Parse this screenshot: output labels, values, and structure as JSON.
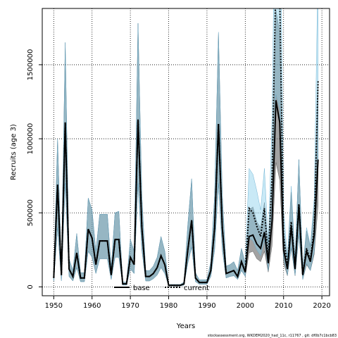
{
  "chart_data": {
    "type": "line",
    "xlabel": "Years",
    "ylabel": "Recruits (age 3)",
    "xlim": [
      1947,
      2022
    ],
    "ylim": [
      -60000,
      1880000
    ],
    "xticks": [
      1950,
      1960,
      1970,
      1980,
      1990,
      2000,
      2010,
      2020
    ],
    "yticks": [
      0,
      500000,
      1000000,
      1500000
    ],
    "ytick_labels": [
      "0",
      "500000",
      "1000000",
      "1500000"
    ],
    "grid": true,
    "legend_placement": "bottom-center",
    "footer": "stockassessment.org, WKDEM2020_had_11c, r11767 , git: df0b7c1bcb83",
    "x": [
      1950,
      1951,
      1952,
      1953,
      1954,
      1955,
      1956,
      1957,
      1958,
      1959,
      1960,
      1961,
      1962,
      1963,
      1964,
      1965,
      1966,
      1967,
      1968,
      1969,
      1970,
      1971,
      1972,
      1973,
      1974,
      1975,
      1976,
      1977,
      1978,
      1979,
      1980,
      1981,
      1982,
      1983,
      1984,
      1985,
      1986,
      1987,
      1988,
      1989,
      1990,
      1991,
      1992,
      1993,
      1994,
      1995,
      1996,
      1997,
      1998,
      1999,
      2000,
      2001,
      2002,
      2003,
      2004,
      2005,
      2006,
      2007,
      2008,
      2009,
      2010,
      2011,
      2012,
      2013,
      2014,
      2015,
      2016,
      2017,
      2018,
      2019
    ],
    "series": [
      {
        "name": "base",
        "color": "#000000",
        "band_color": "#555555",
        "line_style": "solid",
        "values": [
          60000,
          690000,
          80000,
          1110000,
          120000,
          70000,
          230000,
          60000,
          60000,
          390000,
          330000,
          150000,
          310000,
          310000,
          310000,
          80000,
          320000,
          320000,
          20000,
          20000,
          200000,
          150000,
          1130000,
          400000,
          70000,
          70000,
          90000,
          130000,
          210000,
          150000,
          10000,
          10000,
          10000,
          10000,
          20000,
          250000,
          450000,
          60000,
          30000,
          30000,
          30000,
          110000,
          400000,
          1100000,
          400000,
          90000,
          100000,
          110000,
          70000,
          170000,
          100000,
          340000,
          350000,
          290000,
          260000,
          370000,
          160000,
          450000,
          1260000,
          1110000,
          250000,
          120000,
          410000,
          120000,
          550000,
          80000,
          240000,
          170000,
          350000,
          860000
        ],
        "lower": [
          40000,
          400000,
          40000,
          700000,
          70000,
          40000,
          130000,
          35000,
          35000,
          240000,
          200000,
          90000,
          190000,
          190000,
          190000,
          50000,
          200000,
          200000,
          12000,
          12000,
          120000,
          90000,
          700000,
          250000,
          40000,
          40000,
          55000,
          80000,
          130000,
          90000,
          6000,
          6000,
          6000,
          6000,
          12000,
          160000,
          270000,
          35000,
          18000,
          18000,
          18000,
          70000,
          250000,
          700000,
          250000,
          60000,
          70000,
          75000,
          50000,
          110000,
          70000,
          230000,
          240000,
          190000,
          170000,
          240000,
          100000,
          280000,
          840000,
          720000,
          160000,
          75000,
          260000,
          75000,
          350000,
          50000,
          150000,
          110000,
          220000,
          550000
        ],
        "upper": [
          80000,
          1000000,
          120000,
          1650000,
          190000,
          110000,
          360000,
          95000,
          95000,
          600000,
          520000,
          240000,
          490000,
          490000,
          490000,
          130000,
          500000,
          510000,
          32000,
          32000,
          320000,
          240000,
          1780000,
          620000,
          110000,
          110000,
          140000,
          200000,
          340000,
          240000,
          16000,
          16000,
          16000,
          16000,
          32000,
          420000,
          730000,
          95000,
          48000,
          48000,
          48000,
          170000,
          620000,
          1720000,
          620000,
          140000,
          150000,
          170000,
          110000,
          260000,
          160000,
          520000,
          540000,
          440000,
          400000,
          570000,
          250000,
          720000,
          1870000,
          1720000,
          390000,
          190000,
          640000,
          190000,
          860000,
          130000,
          380000,
          270000,
          550000,
          1340000
        ]
      },
      {
        "name": "current",
        "color": "#000000",
        "band_color": "#87CEEB",
        "line_style": "dotted",
        "values": [
          60000,
          690000,
          80000,
          1110000,
          120000,
          70000,
          230000,
          60000,
          60000,
          390000,
          330000,
          150000,
          310000,
          310000,
          310000,
          80000,
          320000,
          320000,
          20000,
          20000,
          200000,
          150000,
          1130000,
          400000,
          70000,
          70000,
          90000,
          130000,
          210000,
          150000,
          10000,
          10000,
          10000,
          10000,
          20000,
          250000,
          450000,
          60000,
          30000,
          30000,
          30000,
          110000,
          400000,
          1100000,
          400000,
          90000,
          100000,
          110000,
          70000,
          170000,
          100000,
          530000,
          500000,
          410000,
          340000,
          530000,
          190000,
          760000,
          2100000,
          1950000,
          340000,
          130000,
          440000,
          130000,
          560000,
          80000,
          260000,
          180000,
          390000,
          1390000
        ],
        "lower": [
          40000,
          400000,
          40000,
          700000,
          70000,
          40000,
          130000,
          35000,
          35000,
          240000,
          200000,
          90000,
          190000,
          190000,
          190000,
          50000,
          200000,
          200000,
          12000,
          12000,
          120000,
          90000,
          700000,
          250000,
          40000,
          40000,
          55000,
          80000,
          130000,
          90000,
          6000,
          6000,
          6000,
          6000,
          12000,
          160000,
          270000,
          35000,
          18000,
          18000,
          18000,
          70000,
          250000,
          700000,
          250000,
          60000,
          70000,
          75000,
          50000,
          110000,
          70000,
          330000,
          310000,
          250000,
          210000,
          320000,
          110000,
          450000,
          1300000,
          1200000,
          200000,
          80000,
          270000,
          80000,
          360000,
          50000,
          160000,
          110000,
          240000,
          850000
        ],
        "upper": [
          80000,
          1000000,
          120000,
          1650000,
          190000,
          110000,
          360000,
          95000,
          95000,
          600000,
          520000,
          240000,
          490000,
          490000,
          490000,
          130000,
          500000,
          510000,
          32000,
          32000,
          320000,
          240000,
          1780000,
          620000,
          110000,
          110000,
          140000,
          200000,
          340000,
          240000,
          16000,
          16000,
          16000,
          16000,
          32000,
          420000,
          730000,
          95000,
          48000,
          48000,
          48000,
          170000,
          620000,
          1720000,
          620000,
          140000,
          150000,
          170000,
          110000,
          260000,
          160000,
          800000,
          760000,
          650000,
          520000,
          800000,
          300000,
          1150000,
          3200000,
          3000000,
          520000,
          200000,
          680000,
          200000,
          860000,
          130000,
          400000,
          280000,
          600000,
          2200000
        ]
      }
    ]
  }
}
